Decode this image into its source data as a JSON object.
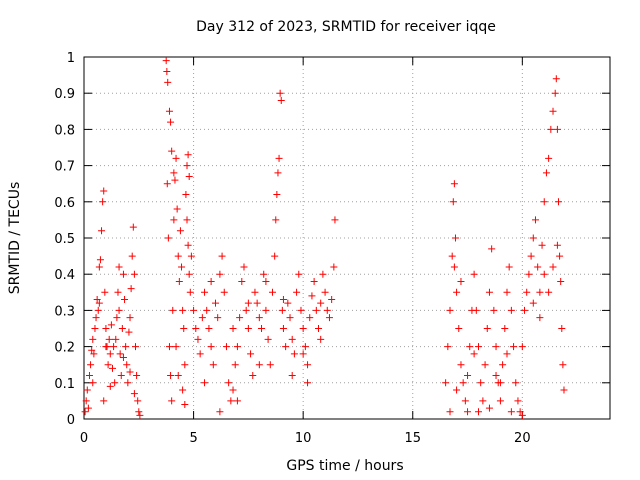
{
  "chart_data": {
    "type": "scatter",
    "title": "Day 312 of 2023, SRMTID for receiver iqqe",
    "xlabel": "GPS time / hours",
    "ylabel": "SRMTID / TECUs",
    "xlim": [
      0,
      24
    ],
    "ylim": [
      0,
      1
    ],
    "xticks": [
      0,
      5,
      10,
      15,
      20
    ],
    "xtick_labels": [
      "0",
      "5",
      "10",
      "15",
      "20"
    ],
    "yticks": [
      0,
      0.1,
      0.2,
      0.3,
      0.4,
      0.5,
      0.6,
      0.7,
      0.8,
      0.9,
      1
    ],
    "ytick_labels": [
      "0",
      "0.1",
      "0.2",
      "0.3",
      "0.4",
      "0.5",
      "0.6",
      "0.7",
      "0.8",
      "0.9",
      "1"
    ],
    "grid": true,
    "marker": "+",
    "color": "#ff0000",
    "series": [
      {
        "name": "SRMTID",
        "points": [
          [
            0.05,
            0.02
          ],
          [
            0.1,
            0.05
          ],
          [
            0.15,
            0.08
          ],
          [
            0.2,
            0.03
          ],
          [
            0.25,
            0.12
          ],
          [
            0.3,
            0.15
          ],
          [
            0.35,
            0.19
          ],
          [
            0.4,
            0.22
          ],
          [
            0.45,
            0.18
          ],
          [
            0.5,
            0.25
          ],
          [
            0.55,
            0.28
          ],
          [
            0.6,
            0.33
          ],
          [
            0.65,
            0.3
          ],
          [
            0.7,
            0.42
          ],
          [
            0.75,
            0.44
          ],
          [
            0.8,
            0.52
          ],
          [
            0.85,
            0.6
          ],
          [
            0.9,
            0.63
          ],
          [
            0.95,
            0.35
          ],
          [
            1.0,
            0.25
          ],
          [
            1.05,
            0.2
          ],
          [
            1.1,
            0.15
          ],
          [
            1.15,
            0.22
          ],
          [
            1.2,
            0.18
          ],
          [
            1.25,
            0.26
          ],
          [
            1.3,
            0.14
          ],
          [
            1.35,
            0.2
          ],
          [
            1.4,
            0.1
          ],
          [
            1.45,
            0.22
          ],
          [
            1.5,
            0.28
          ],
          [
            1.55,
            0.35
          ],
          [
            1.6,
            0.3
          ],
          [
            1.65,
            0.18
          ],
          [
            1.7,
            0.12
          ],
          [
            1.75,
            0.25
          ],
          [
            1.8,
            0.4
          ],
          [
            1.85,
            0.33
          ],
          [
            1.9,
            0.2
          ],
          [
            1.95,
            0.15
          ],
          [
            2.0,
            0.1
          ],
          [
            2.05,
            0.24
          ],
          [
            2.1,
            0.28
          ],
          [
            2.15,
            0.36
          ],
          [
            2.2,
            0.45
          ],
          [
            2.25,
            0.53
          ],
          [
            2.3,
            0.4
          ],
          [
            2.35,
            0.2
          ],
          [
            2.4,
            0.12
          ],
          [
            2.45,
            0.05
          ],
          [
            2.5,
            0.02
          ],
          [
            2.55,
            0.01
          ],
          [
            0.9,
            0.05
          ],
          [
            1.2,
            0.09
          ],
          [
            2.3,
            0.07
          ],
          [
            1.6,
            0.42
          ],
          [
            0.7,
            0.32
          ],
          [
            1.0,
            0.2
          ],
          [
            1.8,
            0.17
          ],
          [
            2.1,
            0.13
          ],
          [
            0.4,
            0.1
          ],
          [
            3.8,
            0.65
          ],
          [
            3.85,
            0.5
          ],
          [
            3.9,
            0.2
          ],
          [
            3.95,
            0.12
          ],
          [
            4.0,
            0.05
          ],
          [
            4.05,
            0.3
          ],
          [
            4.1,
            0.55
          ],
          [
            4.15,
            0.66
          ],
          [
            4.2,
            0.72
          ],
          [
            4.25,
            0.58
          ],
          [
            4.3,
            0.45
          ],
          [
            4.35,
            0.38
          ],
          [
            4.4,
            0.52
          ],
          [
            4.45,
            0.42
          ],
          [
            4.5,
            0.3
          ],
          [
            4.55,
            0.25
          ],
          [
            4.6,
            0.15
          ],
          [
            4.65,
            0.62
          ],
          [
            4.7,
            0.55
          ],
          [
            4.75,
            0.48
          ],
          [
            4.8,
            0.4
          ],
          [
            4.85,
            0.35
          ],
          [
            3.75,
            0.99
          ],
          [
            3.78,
            0.96
          ],
          [
            3.82,
            0.93
          ],
          [
            3.9,
            0.85
          ],
          [
            3.95,
            0.82
          ],
          [
            4.0,
            0.74
          ],
          [
            4.1,
            0.68
          ],
          [
            4.7,
            0.7
          ],
          [
            4.75,
            0.73
          ],
          [
            4.8,
            0.67
          ],
          [
            4.3,
            0.12
          ],
          [
            4.5,
            0.08
          ],
          [
            4.6,
            0.04
          ],
          [
            4.2,
            0.2
          ],
          [
            4.9,
            0.45
          ],
          [
            5.0,
            0.3
          ],
          [
            5.1,
            0.25
          ],
          [
            5.2,
            0.22
          ],
          [
            5.3,
            0.18
          ],
          [
            5.4,
            0.28
          ],
          [
            5.5,
            0.35
          ],
          [
            5.6,
            0.3
          ],
          [
            5.7,
            0.25
          ],
          [
            5.8,
            0.2
          ],
          [
            5.9,
            0.15
          ],
          [
            6.0,
            0.32
          ],
          [
            6.1,
            0.28
          ],
          [
            6.2,
            0.4
          ],
          [
            6.3,
            0.45
          ],
          [
            6.4,
            0.35
          ],
          [
            6.5,
            0.2
          ],
          [
            6.6,
            0.1
          ],
          [
            6.7,
            0.05
          ],
          [
            6.8,
            0.08
          ],
          [
            6.9,
            0.15
          ],
          [
            7.0,
            0.2
          ],
          [
            7.1,
            0.28
          ],
          [
            7.2,
            0.38
          ],
          [
            7.3,
            0.42
          ],
          [
            7.4,
            0.3
          ],
          [
            7.5,
            0.25
          ],
          [
            7.6,
            0.18
          ],
          [
            7.7,
            0.12
          ],
          [
            7.8,
            0.35
          ],
          [
            7.9,
            0.32
          ],
          [
            8.0,
            0.28
          ],
          [
            8.1,
            0.25
          ],
          [
            8.2,
            0.4
          ],
          [
            8.3,
            0.3
          ],
          [
            8.4,
            0.22
          ],
          [
            8.5,
            0.15
          ],
          [
            8.6,
            0.35
          ],
          [
            8.7,
            0.45
          ],
          [
            8.75,
            0.55
          ],
          [
            8.8,
            0.62
          ],
          [
            8.85,
            0.68
          ],
          [
            8.9,
            0.72
          ],
          [
            8.95,
            0.9
          ],
          [
            9.0,
            0.88
          ],
          [
            9.05,
            0.3
          ],
          [
            9.1,
            0.25
          ],
          [
            9.2,
            0.2
          ],
          [
            9.3,
            0.32
          ],
          [
            9.4,
            0.28
          ],
          [
            9.5,
            0.22
          ],
          [
            9.6,
            0.18
          ],
          [
            9.7,
            0.35
          ],
          [
            9.8,
            0.4
          ],
          [
            9.9,
            0.3
          ],
          [
            10.0,
            0.25
          ],
          [
            10.1,
            0.2
          ],
          [
            10.2,
            0.15
          ],
          [
            10.3,
            0.28
          ],
          [
            10.4,
            0.34
          ],
          [
            10.5,
            0.38
          ],
          [
            10.6,
            0.3
          ],
          [
            10.7,
            0.25
          ],
          [
            10.8,
            0.32
          ],
          [
            10.9,
            0.4
          ],
          [
            11.0,
            0.35
          ],
          [
            11.1,
            0.3
          ],
          [
            11.2,
            0.28
          ],
          [
            11.3,
            0.33
          ],
          [
            11.4,
            0.42
          ],
          [
            11.45,
            0.55
          ],
          [
            5.5,
            0.1
          ],
          [
            6.2,
            0.02
          ],
          [
            7.0,
            0.05
          ],
          [
            8.0,
            0.15
          ],
          [
            9.5,
            0.12
          ],
          [
            10.2,
            0.1
          ],
          [
            5.8,
            0.38
          ],
          [
            6.8,
            0.25
          ],
          [
            7.5,
            0.32
          ],
          [
            8.3,
            0.38
          ],
          [
            9.1,
            0.33
          ],
          [
            10.0,
            0.18
          ],
          [
            10.8,
            0.22
          ],
          [
            16.5,
            0.1
          ],
          [
            16.6,
            0.2
          ],
          [
            16.7,
            0.3
          ],
          [
            16.8,
            0.45
          ],
          [
            16.85,
            0.6
          ],
          [
            16.9,
            0.65
          ],
          [
            16.95,
            0.5
          ],
          [
            17.0,
            0.35
          ],
          [
            17.1,
            0.25
          ],
          [
            17.2,
            0.15
          ],
          [
            17.3,
            0.1
          ],
          [
            17.4,
            0.05
          ],
          [
            17.5,
            0.12
          ],
          [
            17.6,
            0.2
          ],
          [
            17.7,
            0.3
          ],
          [
            17.8,
            0.4
          ],
          [
            17.9,
            0.3
          ],
          [
            18.0,
            0.2
          ],
          [
            18.1,
            0.1
          ],
          [
            18.2,
            0.05
          ],
          [
            18.3,
            0.15
          ],
          [
            18.4,
            0.25
          ],
          [
            18.5,
            0.35
          ],
          [
            18.6,
            0.47
          ],
          [
            18.7,
            0.3
          ],
          [
            18.8,
            0.2
          ],
          [
            18.9,
            0.1
          ],
          [
            19.0,
            0.05
          ],
          [
            19.1,
            0.15
          ],
          [
            19.2,
            0.25
          ],
          [
            19.3,
            0.35
          ],
          [
            19.4,
            0.42
          ],
          [
            19.5,
            0.3
          ],
          [
            19.6,
            0.2
          ],
          [
            19.7,
            0.1
          ],
          [
            19.8,
            0.05
          ],
          [
            19.9,
            0.02
          ],
          [
            20.0,
            0.2
          ],
          [
            20.1,
            0.3
          ],
          [
            20.2,
            0.35
          ],
          [
            20.3,
            0.4
          ],
          [
            20.4,
            0.45
          ],
          [
            20.5,
            0.5
          ],
          [
            20.6,
            0.55
          ],
          [
            20.7,
            0.42
          ],
          [
            20.8,
            0.35
          ],
          [
            20.9,
            0.48
          ],
          [
            21.0,
            0.6
          ],
          [
            21.1,
            0.68
          ],
          [
            21.2,
            0.72
          ],
          [
            21.3,
            0.8
          ],
          [
            21.4,
            0.85
          ],
          [
            21.5,
            0.9
          ],
          [
            21.55,
            0.94
          ],
          [
            21.6,
            0.8
          ],
          [
            21.65,
            0.6
          ],
          [
            21.7,
            0.45
          ],
          [
            21.75,
            0.38
          ],
          [
            21.8,
            0.25
          ],
          [
            21.85,
            0.15
          ],
          [
            21.9,
            0.08
          ],
          [
            16.7,
            0.02
          ],
          [
            17.0,
            0.08
          ],
          [
            17.5,
            0.02
          ],
          [
            18.0,
            0.02
          ],
          [
            18.5,
            0.03
          ],
          [
            19.0,
            0.1
          ],
          [
            19.5,
            0.02
          ],
          [
            20.0,
            0.01
          ],
          [
            17.2,
            0.38
          ],
          [
            17.8,
            0.18
          ],
          [
            18.8,
            0.12
          ],
          [
            19.3,
            0.18
          ],
          [
            20.5,
            0.32
          ],
          [
            21.0,
            0.4
          ],
          [
            21.2,
            0.35
          ],
          [
            21.4,
            0.42
          ],
          [
            20.8,
            0.28
          ],
          [
            21.6,
            0.48
          ],
          [
            16.9,
            0.42
          ]
        ]
      }
    ]
  }
}
